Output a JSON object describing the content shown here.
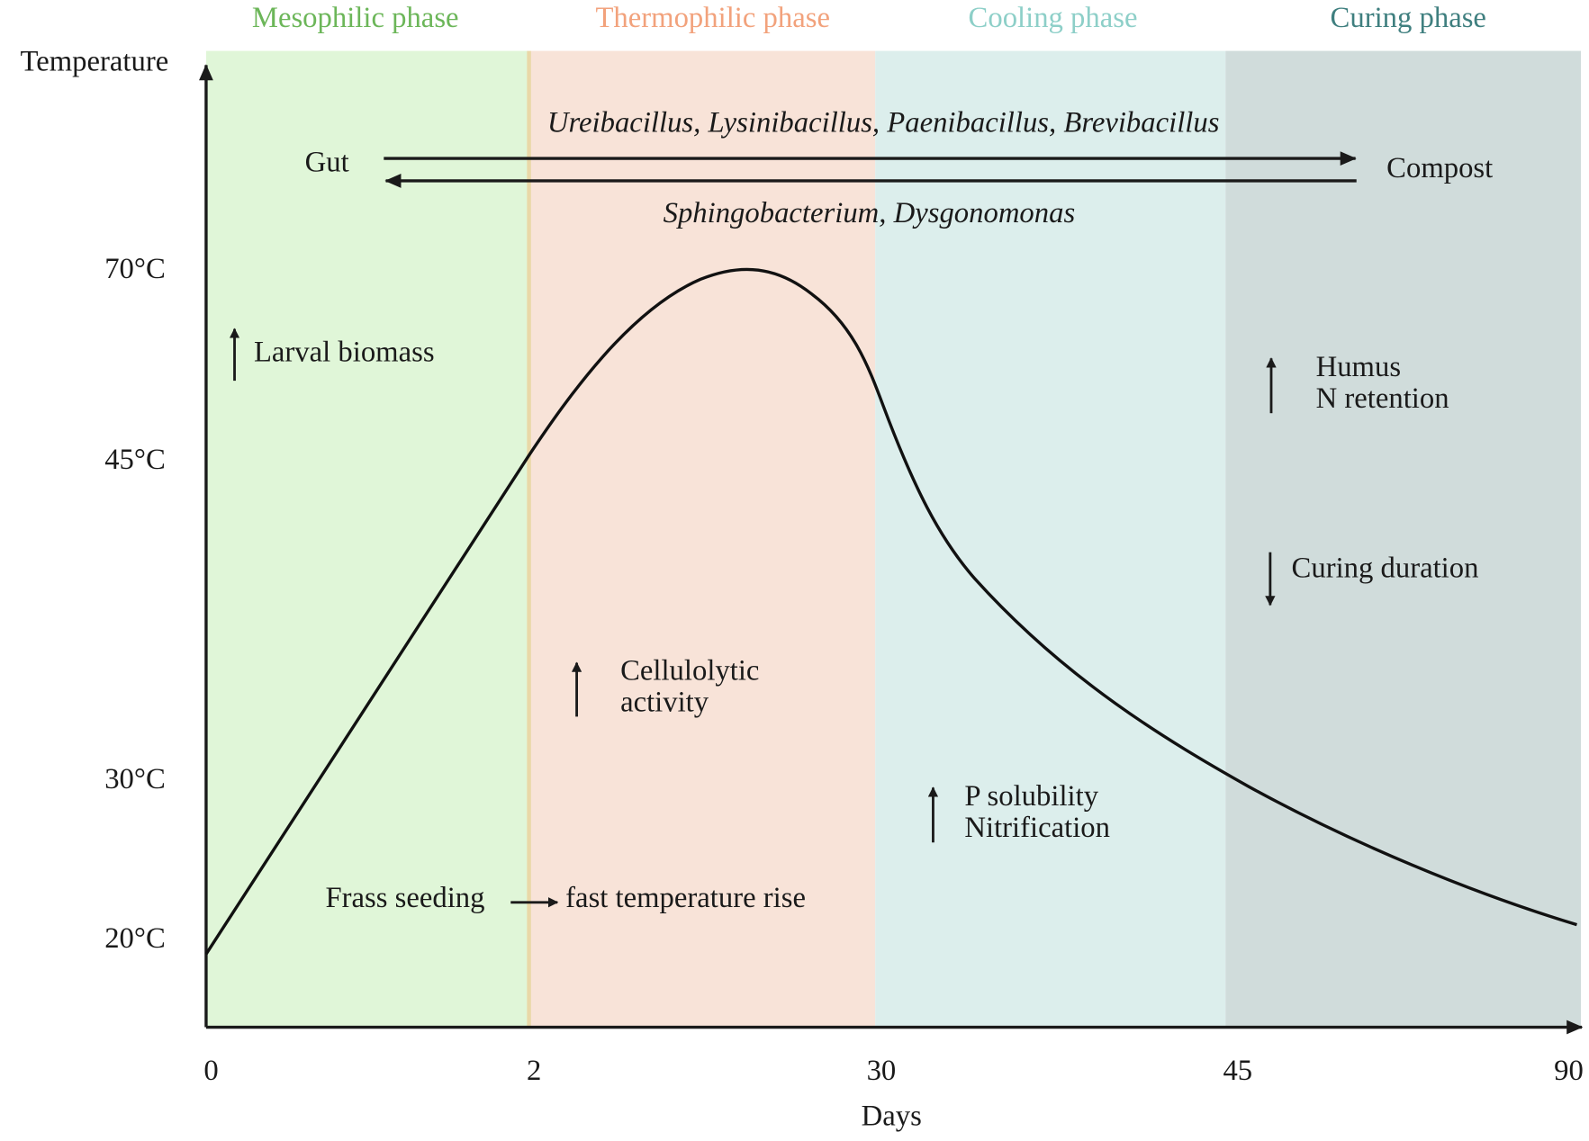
{
  "phases": [
    {
      "label": "Mesophilic phase"
    },
    {
      "label": "Thermophilic phase"
    },
    {
      "label": "Cooling phase"
    },
    {
      "label": "Curing phase"
    }
  ],
  "y_axis": {
    "label": "Temperature",
    "ticks": [
      "70°C",
      "45°C",
      "30°C",
      "20°C"
    ]
  },
  "x_axis": {
    "label": "Days",
    "ticks": [
      "0",
      "2",
      "30",
      "45",
      "90"
    ]
  },
  "transfer": {
    "from": "Gut",
    "to": "Compost",
    "forward_taxa": "Ureibacillus, Lysinibacillus, Paenibacillus, Brevibacillus",
    "backward_taxa": "Sphingobacterium, Dysgonomonas"
  },
  "annotations": {
    "larval": "Larval biomass",
    "frass": "Frass seeding",
    "fast_rise": "fast temperature rise",
    "cellulolytic": [
      "Cellulolytic",
      "activity"
    ],
    "phosphorus": [
      "P solubility",
      "Nitrification"
    ],
    "humus": [
      "Humus",
      "N retention"
    ],
    "curing": "Curing duration"
  }
}
